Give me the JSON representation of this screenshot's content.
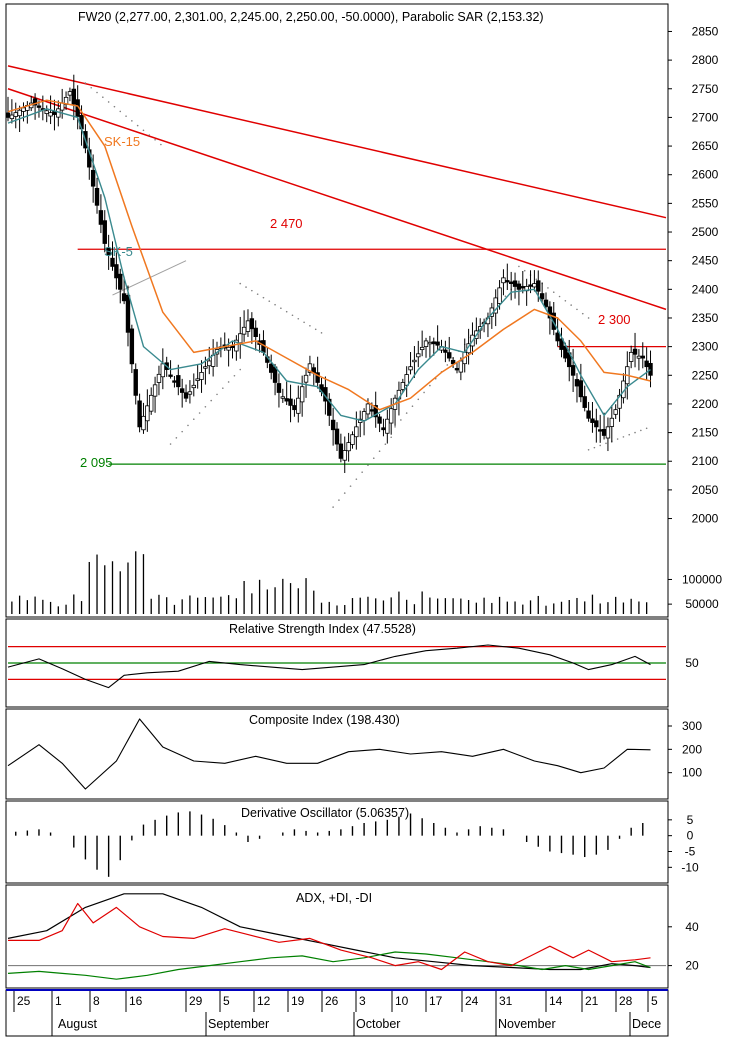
{
  "colors": {
    "price": "#000000",
    "sk5": "#3a8a8f",
    "sk15": "#f07820",
    "trend_red": "#e00000",
    "support_green": "#008000",
    "resist_red": "#e00000",
    "sar": "#808080",
    "di_plus": "#008000",
    "di_minus": "#e00000",
    "adx": "#000000",
    "frame": "#000000",
    "date_axis_line": "#0000c0"
  },
  "header": {
    "title": "FW20 (2,277.00, 2,301.00, 2,245.00, 2,250.00, -50.0000), Parabolic SAR (2,153.32)"
  },
  "chart_data": [
    {
      "type": "candlestick",
      "name": "price",
      "title": "FW20 (2,277.00, 2,301.00, 2,245.00, 2,250.00, -50.0000), Parabolic SAR (2,153.32)",
      "ylim": [
        1980,
        2870
      ],
      "y_ticks": [
        2850,
        2800,
        2750,
        2700,
        2650,
        2600,
        2550,
        2500,
        2450,
        2400,
        2350,
        2300,
        2250,
        2200,
        2150,
        2100,
        2050,
        2000
      ],
      "last": {
        "open": 2277.0,
        "high": 2301.0,
        "low": 2245.0,
        "close": 2250.0,
        "change": -50.0
      },
      "sar_last": 2153.32,
      "close_points": [
        [
          0,
          2700
        ],
        [
          6,
          2725
        ],
        [
          12,
          2705
        ],
        [
          16,
          2745
        ],
        [
          19,
          2680
        ],
        [
          25,
          2480
        ],
        [
          30,
          2380
        ],
        [
          34,
          2160
        ],
        [
          40,
          2270
        ],
        [
          46,
          2210
        ],
        [
          50,
          2255
        ],
        [
          54,
          2295
        ],
        [
          58,
          2300
        ],
        [
          62,
          2345
        ],
        [
          66,
          2290
        ],
        [
          70,
          2220
        ],
        [
          74,
          2190
        ],
        [
          78,
          2270
        ],
        [
          82,
          2205
        ],
        [
          86,
          2105
        ],
        [
          90,
          2160
        ],
        [
          93,
          2200
        ],
        [
          97,
          2155
        ],
        [
          100,
          2210
        ],
        [
          104,
          2265
        ],
        [
          108,
          2310
        ],
        [
          112,
          2300
        ],
        [
          116,
          2260
        ],
        [
          120,
          2320
        ],
        [
          124,
          2350
        ],
        [
          128,
          2420
        ],
        [
          132,
          2400
        ],
        [
          136,
          2410
        ],
        [
          139,
          2370
        ],
        [
          142,
          2310
        ],
        [
          146,
          2250
        ],
        [
          150,
          2175
        ],
        [
          154,
          2145
        ],
        [
          157,
          2190
        ],
        [
          161,
          2290
        ],
        [
          164,
          2280
        ],
        [
          166,
          2250
        ]
      ],
      "lines": [
        {
          "label": "SK-5",
          "points": [
            [
              0,
              2690
            ],
            [
              10,
              2715
            ],
            [
              18,
              2700
            ],
            [
              25,
              2560
            ],
            [
              30,
              2420
            ],
            [
              35,
              2300
            ],
            [
              42,
              2260
            ],
            [
              50,
              2270
            ],
            [
              58,
              2310
            ],
            [
              66,
              2290
            ],
            [
              72,
              2240
            ],
            [
              80,
              2230
            ],
            [
              86,
              2180
            ],
            [
              92,
              2170
            ],
            [
              100,
              2200
            ],
            [
              106,
              2260
            ],
            [
              112,
              2300
            ],
            [
              118,
              2290
            ],
            [
              124,
              2350
            ],
            [
              130,
              2395
            ],
            [
              136,
              2400
            ],
            [
              142,
              2330
            ],
            [
              148,
              2250
            ],
            [
              154,
              2180
            ],
            [
              160,
              2230
            ],
            [
              166,
              2260
            ]
          ]
        },
        {
          "label": "SK-15",
          "points": [
            [
              0,
              2710
            ],
            [
              10,
              2730
            ],
            [
              18,
              2720
            ],
            [
              25,
              2650
            ],
            [
              32,
              2510
            ],
            [
              40,
              2360
            ],
            [
              48,
              2290
            ],
            [
              56,
              2300
            ],
            [
              64,
              2310
            ],
            [
              72,
              2280
            ],
            [
              80,
              2250
            ],
            [
              88,
              2225
            ],
            [
              96,
              2190
            ],
            [
              104,
              2210
            ],
            [
              112,
              2255
            ],
            [
              120,
              2290
            ],
            [
              128,
              2330
            ],
            [
              136,
              2365
            ],
            [
              142,
              2350
            ],
            [
              148,
              2310
            ],
            [
              154,
              2255
            ],
            [
              160,
              2250
            ],
            [
              166,
              2240
            ]
          ]
        },
        {
          "label": "trend-upper",
          "points": [
            [
              0,
              2790
            ],
            [
              170,
              2525
            ]
          ]
        },
        {
          "label": "trend-lower",
          "points": [
            [
              0,
              2750
            ],
            [
              170,
              2365
            ]
          ]
        },
        {
          "label": "2 470",
          "points": [
            [
              18,
              2470
            ],
            [
              170,
              2470
            ]
          ]
        },
        {
          "label": "2 300",
          "points": [
            [
              142,
              2300
            ],
            [
              170,
              2300
            ]
          ]
        },
        {
          "label": "2 095",
          "points": [
            [
              26,
              2095
            ],
            [
              170,
              2095
            ]
          ]
        }
      ],
      "annotations": [
        "SK-15",
        "SK-5",
        "2 470",
        "2 300",
        "2 095"
      ]
    },
    {
      "type": "bar",
      "name": "volume",
      "ylim": [
        30000,
        180000
      ],
      "y_ticks": [
        100000,
        50000
      ]
    },
    {
      "type": "line",
      "title": "Relative Strength Index (47.5528)",
      "value": 47.5528,
      "ylim": [
        0,
        100
      ],
      "y_ticks": [
        50
      ],
      "levels": [
        70,
        30
      ],
      "points": [
        [
          0,
          45
        ],
        [
          8,
          55
        ],
        [
          14,
          43
        ],
        [
          20,
          30
        ],
        [
          26,
          20
        ],
        [
          30,
          35
        ],
        [
          36,
          38
        ],
        [
          44,
          40
        ],
        [
          52,
          52
        ],
        [
          60,
          48
        ],
        [
          68,
          45
        ],
        [
          76,
          42
        ],
        [
          84,
          45
        ],
        [
          92,
          48
        ],
        [
          100,
          58
        ],
        [
          108,
          65
        ],
        [
          116,
          68
        ],
        [
          124,
          72
        ],
        [
          132,
          68
        ],
        [
          140,
          60
        ],
        [
          146,
          50
        ],
        [
          150,
          42
        ],
        [
          156,
          48
        ],
        [
          162,
          58
        ],
        [
          166,
          48
        ]
      ]
    },
    {
      "type": "line",
      "title": "Composite Index (198.430)",
      "value": 198.43,
      "ylim": [
        0,
        360
      ],
      "y_ticks": [
        300,
        200,
        100
      ],
      "points": [
        [
          0,
          130
        ],
        [
          8,
          220
        ],
        [
          14,
          140
        ],
        [
          20,
          30
        ],
        [
          28,
          150
        ],
        [
          34,
          330
        ],
        [
          40,
          210
        ],
        [
          48,
          150
        ],
        [
          56,
          140
        ],
        [
          64,
          170
        ],
        [
          72,
          140
        ],
        [
          80,
          140
        ],
        [
          88,
          190
        ],
        [
          96,
          200
        ],
        [
          104,
          180
        ],
        [
          112,
          190
        ],
        [
          120,
          170
        ],
        [
          128,
          200
        ],
        [
          136,
          150
        ],
        [
          142,
          130
        ],
        [
          148,
          100
        ],
        [
          154,
          120
        ],
        [
          160,
          200
        ],
        [
          166,
          198
        ]
      ]
    },
    {
      "type": "bar",
      "title": "Derivative Oscillator (5.06357)",
      "value": 5.06357,
      "ylim": [
        -14,
        10
      ],
      "y_ticks": [
        5,
        0,
        -5,
        -10
      ],
      "points": [
        [
          0,
          1
        ],
        [
          8,
          2
        ],
        [
          14,
          0
        ],
        [
          18,
          -5
        ],
        [
          22,
          -10
        ],
        [
          26,
          -13
        ],
        [
          30,
          -6
        ],
        [
          34,
          3
        ],
        [
          40,
          6
        ],
        [
          46,
          8
        ],
        [
          52,
          6
        ],
        [
          58,
          2
        ],
        [
          62,
          -2
        ],
        [
          68,
          0
        ],
        [
          74,
          2
        ],
        [
          80,
          1
        ],
        [
          86,
          2
        ],
        [
          92,
          4
        ],
        [
          98,
          5
        ],
        [
          104,
          7
        ],
        [
          110,
          4
        ],
        [
          116,
          1
        ],
        [
          122,
          3
        ],
        [
          128,
          2
        ],
        [
          134,
          -2
        ],
        [
          140,
          -5
        ],
        [
          146,
          -6
        ],
        [
          150,
          -7
        ],
        [
          156,
          -4
        ],
        [
          160,
          2
        ],
        [
          166,
          5
        ]
      ]
    },
    {
      "type": "line",
      "title": "ADX, +DI, -DI",
      "ylim": [
        10,
        60
      ],
      "y_ticks": [
        40,
        20
      ],
      "series": [
        {
          "name": "ADX",
          "values": [
            [
              0,
              34
            ],
            [
              10,
              38
            ],
            [
              20,
              50
            ],
            [
              30,
              57
            ],
            [
              40,
              57
            ],
            [
              50,
              50
            ],
            [
              60,
              40
            ],
            [
              70,
              36
            ],
            [
              80,
              32
            ],
            [
              90,
              28
            ],
            [
              100,
              24
            ],
            [
              110,
              22
            ],
            [
              120,
              20
            ],
            [
              130,
              19
            ],
            [
              140,
              18
            ],
            [
              148,
              18
            ],
            [
              156,
              21
            ],
            [
              162,
              20
            ],
            [
              166,
              19
            ]
          ]
        },
        {
          "name": "+DI",
          "values": [
            [
              0,
              16
            ],
            [
              8,
              17
            ],
            [
              14,
              16
            ],
            [
              20,
              15
            ],
            [
              28,
              13
            ],
            [
              36,
              15
            ],
            [
              44,
              18
            ],
            [
              52,
              20
            ],
            [
              60,
              22
            ],
            [
              68,
              24
            ],
            [
              76,
              25
            ],
            [
              84,
              22
            ],
            [
              92,
              24
            ],
            [
              100,
              27
            ],
            [
              108,
              26
            ],
            [
              116,
              24
            ],
            [
              124,
              22
            ],
            [
              132,
              20
            ],
            [
              138,
              18
            ],
            [
              144,
              20
            ],
            [
              150,
              18
            ],
            [
              156,
              20
            ],
            [
              162,
              22
            ],
            [
              166,
              19
            ]
          ]
        },
        {
          "name": "-DI",
          "values": [
            [
              0,
              33
            ],
            [
              8,
              33
            ],
            [
              14,
              38
            ],
            [
              18,
              52
            ],
            [
              22,
              42
            ],
            [
              28,
              50
            ],
            [
              34,
              40
            ],
            [
              40,
              35
            ],
            [
              48,
              34
            ],
            [
              56,
              39
            ],
            [
              62,
              36
            ],
            [
              70,
              32
            ],
            [
              78,
              34
            ],
            [
              86,
              28
            ],
            [
              94,
              24
            ],
            [
              100,
              20
            ],
            [
              106,
              22
            ],
            [
              112,
              18
            ],
            [
              118,
              27
            ],
            [
              124,
              22
            ],
            [
              130,
              20
            ],
            [
              136,
              26
            ],
            [
              140,
              30
            ],
            [
              146,
              24
            ],
            [
              150,
              28
            ],
            [
              156,
              22
            ],
            [
              162,
              23
            ],
            [
              166,
              24
            ]
          ]
        }
      ]
    }
  ],
  "x_axis": {
    "ticks": [
      "25",
      "1",
      "8",
      "16",
      "29",
      "5",
      "12",
      "19",
      "26",
      "3",
      "10",
      "17",
      "24",
      "31",
      "14",
      "21",
      "28",
      "5"
    ],
    "months": [
      "August",
      "September",
      "October",
      "November",
      "Dece"
    ]
  }
}
